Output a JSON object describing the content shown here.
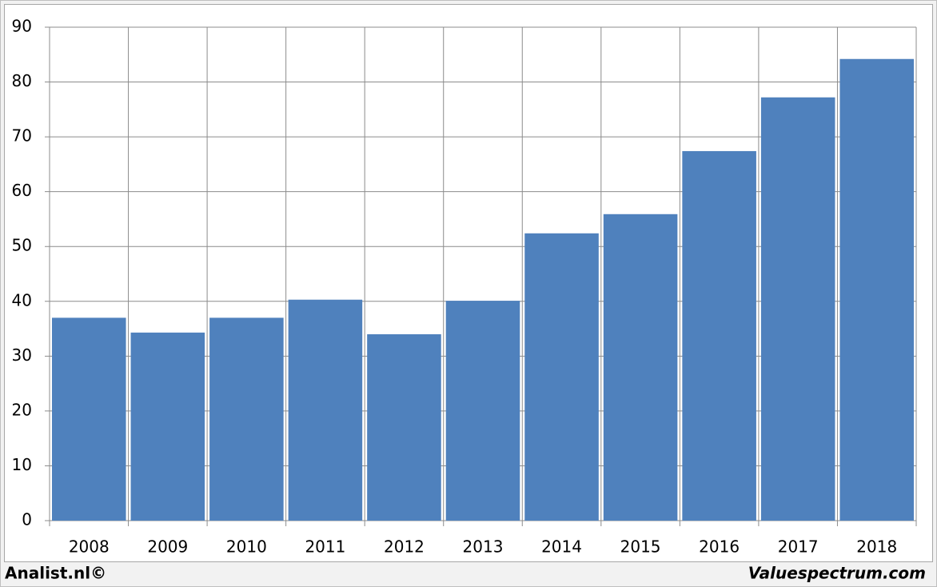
{
  "chart_data": {
    "type": "bar",
    "categories": [
      "2008",
      "2009",
      "2010",
      "2011",
      "2012",
      "2013",
      "2014",
      "2015",
      "2016",
      "2017",
      "2018"
    ],
    "values": [
      37,
      34.3,
      37,
      40.3,
      34,
      40.1,
      52.4,
      55.9,
      67.4,
      77.2,
      84.2
    ],
    "color": "#4f81bd",
    "ylim": [
      0,
      90
    ],
    "yticks": [
      0,
      10,
      20,
      30,
      40,
      50,
      60,
      70,
      80,
      90
    ],
    "grid": true
  },
  "footer": {
    "left": "Analist.nl©",
    "right": "Valuespectrum.com"
  }
}
